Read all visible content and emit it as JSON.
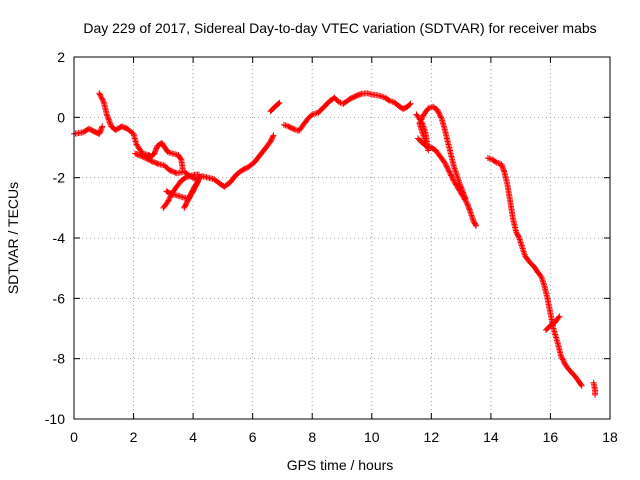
{
  "chart_data": {
    "type": "scatter",
    "title": "Day 229 of 2017, Sidereal Day-to-day VTEC variation (SDTVAR) for receiver mabs",
    "xlabel": "GPS time / hours",
    "ylabel": "SDTVAR / TECUs",
    "xlim": [
      0,
      18
    ],
    "ylim": [
      -10,
      2
    ],
    "xticks": [
      0,
      2,
      4,
      6,
      8,
      10,
      12,
      14,
      16,
      18
    ],
    "yticks": [
      -10,
      -8,
      -6,
      -4,
      -2,
      0,
      2
    ],
    "grid": true,
    "marker": "+",
    "color": "#ff0000",
    "segments": [
      [
        [
          0.0,
          -0.55
        ],
        [
          0.3,
          -0.5
        ],
        [
          0.5,
          -0.38
        ],
        [
          0.7,
          -0.48
        ],
        [
          0.85,
          -0.55
        ],
        [
          0.95,
          -0.3
        ]
      ],
      [
        [
          0.85,
          0.8
        ],
        [
          1.0,
          0.5
        ],
        [
          1.1,
          0.1
        ],
        [
          1.25,
          -0.3
        ],
        [
          1.4,
          -0.42
        ],
        [
          1.6,
          -0.3
        ],
        [
          1.8,
          -0.38
        ],
        [
          2.0,
          -0.55
        ],
        [
          2.1,
          -0.9
        ],
        [
          2.3,
          -1.2
        ],
        [
          2.5,
          -1.25
        ],
        [
          2.6,
          -1.3
        ],
        [
          2.7,
          -1.2
        ],
        [
          2.8,
          -0.95
        ],
        [
          2.95,
          -0.85
        ],
        [
          3.05,
          -1.0
        ],
        [
          3.15,
          -1.15
        ],
        [
          3.3,
          -1.2
        ],
        [
          3.5,
          -1.25
        ],
        [
          3.6,
          -1.4
        ],
        [
          3.65,
          -1.7
        ]
      ],
      [
        [
          2.05,
          -1.2
        ],
        [
          2.3,
          -1.3
        ],
        [
          2.6,
          -1.45
        ],
        [
          2.85,
          -1.55
        ],
        [
          3.05,
          -1.6
        ],
        [
          3.2,
          -1.75
        ],
        [
          3.45,
          -1.85
        ],
        [
          3.7,
          -1.8
        ],
        [
          3.9,
          -1.95
        ],
        [
          4.1,
          -2.05
        ],
        [
          4.3,
          -1.95
        ],
        [
          4.5,
          -2.0
        ],
        [
          4.7,
          -2.05
        ],
        [
          4.9,
          -2.2
        ],
        [
          5.05,
          -2.3
        ],
        [
          5.25,
          -2.15
        ],
        [
          5.45,
          -1.9
        ],
        [
          5.65,
          -1.75
        ],
        [
          5.85,
          -1.65
        ],
        [
          6.05,
          -1.5
        ],
        [
          6.25,
          -1.25
        ],
        [
          6.45,
          -1.0
        ],
        [
          6.6,
          -0.8
        ],
        [
          6.7,
          -0.6
        ]
      ],
      [
        [
          3.0,
          -3.0
        ],
        [
          3.15,
          -2.8
        ],
        [
          3.3,
          -2.5
        ],
        [
          3.45,
          -2.3
        ],
        [
          3.6,
          -2.1
        ],
        [
          3.75,
          -2.0
        ],
        [
          3.9,
          -1.95
        ],
        [
          4.05,
          -1.9
        ],
        [
          4.2,
          -1.9
        ]
      ],
      [
        [
          3.1,
          -2.45
        ],
        [
          3.3,
          -2.55
        ],
        [
          3.5,
          -2.6
        ],
        [
          3.65,
          -2.65
        ],
        [
          3.85,
          -2.7
        ],
        [
          3.95,
          -2.5
        ],
        [
          4.05,
          -2.3
        ],
        [
          4.15,
          -2.15
        ]
      ],
      [
        [
          3.7,
          -3.0
        ],
        [
          3.8,
          -2.8
        ],
        [
          3.9,
          -2.6
        ],
        [
          4.0,
          -2.45
        ],
        [
          4.1,
          -2.25
        ],
        [
          4.2,
          -2.05
        ]
      ],
      [
        [
          6.6,
          0.2
        ],
        [
          6.7,
          0.3
        ],
        [
          6.8,
          0.4
        ],
        [
          6.9,
          0.48
        ]
      ],
      [
        [
          7.05,
          -0.25
        ],
        [
          7.2,
          -0.3
        ],
        [
          7.4,
          -0.4
        ],
        [
          7.55,
          -0.45
        ],
        [
          7.7,
          -0.25
        ],
        [
          7.85,
          -0.05
        ],
        [
          8.0,
          0.1
        ],
        [
          8.2,
          0.15
        ],
        [
          8.4,
          0.35
        ],
        [
          8.6,
          0.55
        ],
        [
          8.75,
          0.65
        ],
        [
          8.9,
          0.5
        ],
        [
          9.05,
          0.45
        ],
        [
          9.25,
          0.6
        ],
        [
          9.45,
          0.7
        ],
        [
          9.65,
          0.78
        ],
        [
          9.85,
          0.8
        ],
        [
          10.05,
          0.75
        ],
        [
          10.25,
          0.72
        ],
        [
          10.45,
          0.65
        ],
        [
          10.6,
          0.55
        ],
        [
          10.75,
          0.5
        ],
        [
          10.9,
          0.38
        ],
        [
          11.05,
          0.28
        ],
        [
          11.2,
          0.35
        ],
        [
          11.3,
          0.45
        ]
      ],
      [
        [
          11.5,
          0.1
        ],
        [
          11.7,
          -0.2
        ],
        [
          11.8,
          -0.5
        ],
        [
          11.85,
          -0.8
        ],
        [
          11.9,
          -1.1
        ],
        [
          11.8,
          -0.8
        ],
        [
          11.7,
          -0.5
        ],
        [
          11.6,
          -0.2
        ],
        [
          11.75,
          0.1
        ],
        [
          11.9,
          0.3
        ],
        [
          12.05,
          0.35
        ],
        [
          12.2,
          0.25
        ],
        [
          12.35,
          -0.05
        ],
        [
          12.45,
          -0.4
        ],
        [
          12.55,
          -0.8
        ],
        [
          12.65,
          -1.2
        ],
        [
          12.75,
          -1.6
        ],
        [
          12.85,
          -1.9
        ],
        [
          12.95,
          -2.2
        ],
        [
          13.05,
          -2.45
        ],
        [
          13.15,
          -2.7
        ]
      ],
      [
        [
          11.55,
          -0.7
        ],
        [
          11.7,
          -0.85
        ],
        [
          11.85,
          -0.95
        ],
        [
          12.0,
          -1.0
        ],
        [
          12.15,
          -1.1
        ],
        [
          12.3,
          -1.3
        ],
        [
          12.45,
          -1.5
        ],
        [
          12.6,
          -1.8
        ],
        [
          12.75,
          -2.1
        ],
        [
          12.9,
          -2.35
        ],
        [
          13.05,
          -2.6
        ],
        [
          13.2,
          -2.85
        ],
        [
          13.3,
          -3.1
        ],
        [
          13.4,
          -3.4
        ],
        [
          13.5,
          -3.6
        ]
      ],
      [
        [
          13.9,
          -1.35
        ],
        [
          14.05,
          -1.4
        ],
        [
          14.2,
          -1.5
        ],
        [
          14.35,
          -1.55
        ],
        [
          14.45,
          -1.8
        ],
        [
          14.55,
          -2.2
        ],
        [
          14.65,
          -2.8
        ],
        [
          14.75,
          -3.4
        ],
        [
          14.85,
          -3.8
        ],
        [
          14.95,
          -4.0
        ],
        [
          15.05,
          -4.3
        ],
        [
          15.15,
          -4.6
        ],
        [
          15.3,
          -4.8
        ],
        [
          15.45,
          -4.95
        ],
        [
          15.55,
          -5.1
        ],
        [
          15.7,
          -5.3
        ],
        [
          15.8,
          -5.6
        ],
        [
          15.9,
          -6.0
        ],
        [
          16.0,
          -6.5
        ],
        [
          16.1,
          -7.0
        ],
        [
          16.25,
          -7.5
        ],
        [
          16.35,
          -7.9
        ],
        [
          16.5,
          -8.2
        ],
        [
          16.65,
          -8.4
        ],
        [
          16.8,
          -8.55
        ],
        [
          16.95,
          -8.75
        ],
        [
          17.05,
          -8.9
        ]
      ],
      [
        [
          15.85,
          -7.05
        ],
        [
          16.0,
          -6.9
        ],
        [
          16.15,
          -6.8
        ],
        [
          16.3,
          -6.6
        ]
      ],
      [
        [
          17.45,
          -8.8
        ],
        [
          17.5,
          -9.05
        ],
        [
          17.5,
          -9.2
        ]
      ]
    ]
  }
}
